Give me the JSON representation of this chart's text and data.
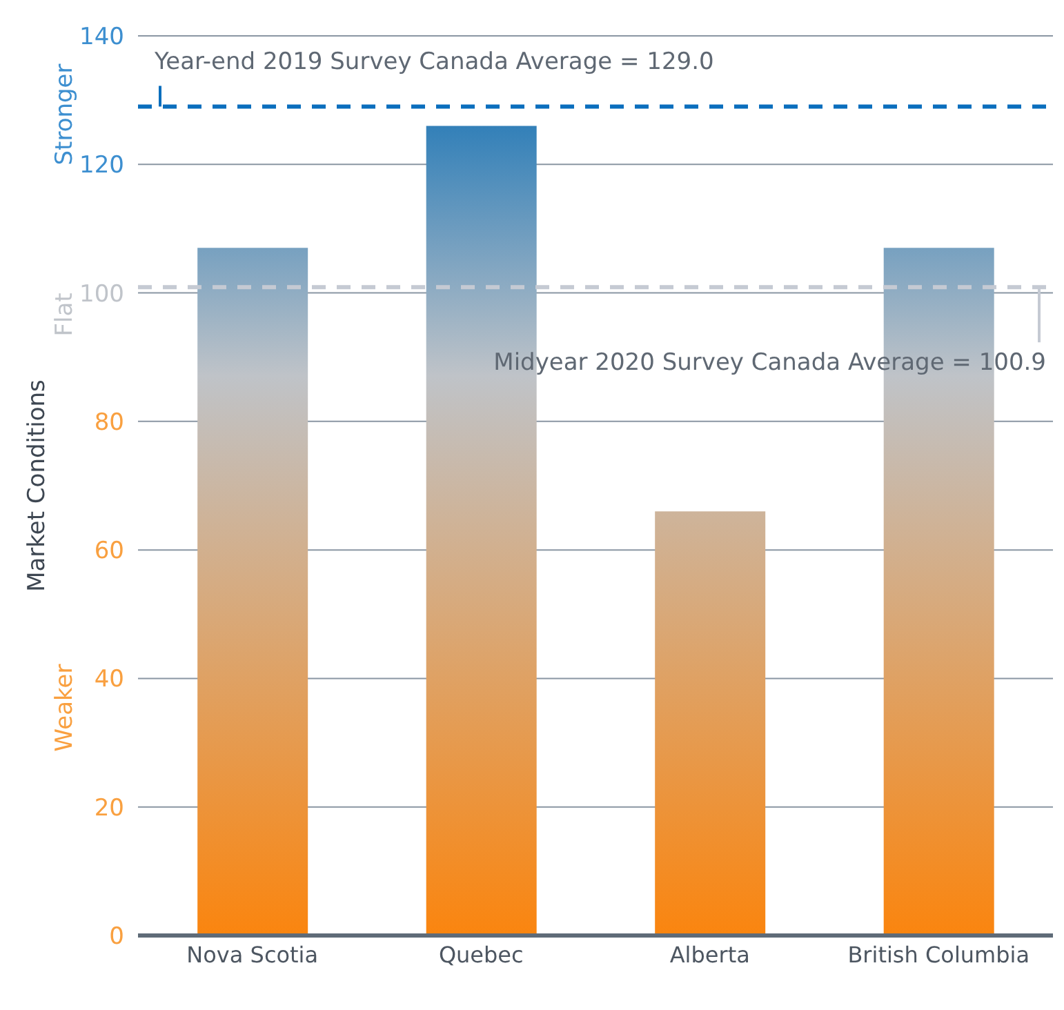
{
  "chart_data": {
    "type": "bar",
    "ylabel": "Market Conditions",
    "categories": [
      "Nova Scotia",
      "Quebec",
      "Alberta",
      "British Columbia"
    ],
    "values": [
      107,
      126,
      66,
      107
    ],
    "color": "#ff8000",
    "ylim": [
      0,
      140
    ],
    "yticks": [
      0,
      20,
      40,
      60,
      80,
      100,
      120,
      140
    ],
    "grid": "y",
    "ref_lines": [
      {
        "axis": "y",
        "value": 129.0,
        "label": "Year-end 2019 Survey Canada Average = 129.0",
        "color": "#0a6ebd",
        "line_style": "dashed"
      },
      {
        "axis": "y",
        "value": 100.9,
        "label": "Midyear 2020 Survey Canada Average = 100.9",
        "color": "#c5cad3",
        "line_style": "dashed"
      }
    ],
    "annotations": [
      "Stronger",
      "Flat",
      "Weaker"
    ]
  }
}
